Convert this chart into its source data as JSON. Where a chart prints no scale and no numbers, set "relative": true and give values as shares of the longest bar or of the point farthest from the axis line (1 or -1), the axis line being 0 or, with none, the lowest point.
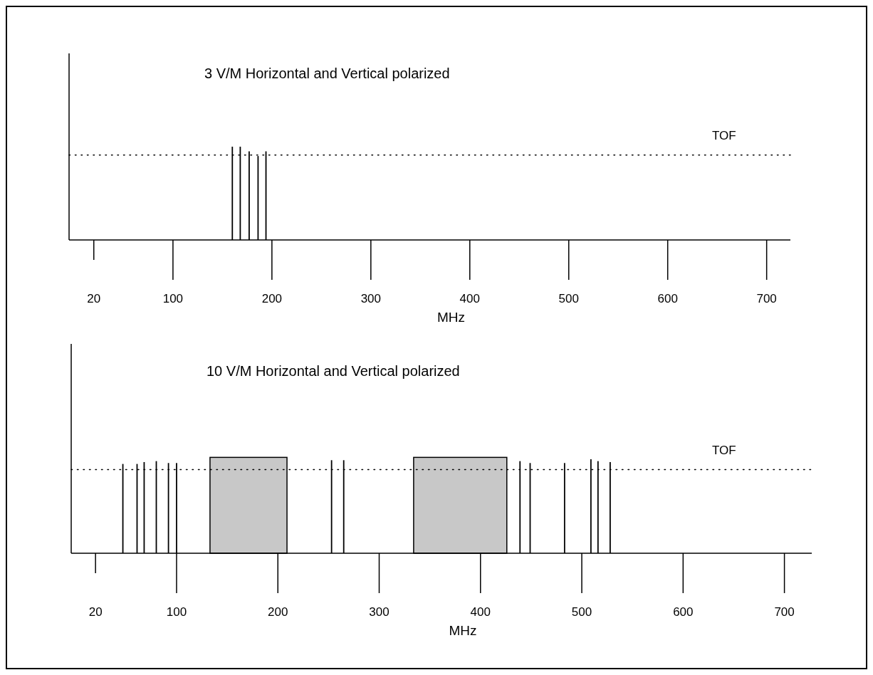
{
  "chart_data": [
    {
      "type": "bar",
      "title": "3 V/M  Horizontal and Vertical polarized",
      "xlabel": "MHz",
      "relative": true,
      "color": "#000000",
      "x": [
        160,
        168,
        177,
        186,
        194
      ],
      "values": [
        1,
        1,
        0.95,
        0.9,
        0.95
      ],
      "xlim": [
        -5,
        724
      ],
      "xticks": [
        20,
        100,
        200,
        300,
        400,
        500,
        600,
        700
      ],
      "ref_lines": [
        {
          "axis": "y",
          "value": 0.91,
          "label": "TOF",
          "line_style": "dotted"
        }
      ]
    },
    {
      "type": "bar",
      "title": "10 V/M Horizontal and Vertical polarized",
      "xlabel": "MHz",
      "relative": true,
      "color": "#000000",
      "x": [
        47,
        61,
        68,
        80,
        92,
        100,
        253,
        265,
        439,
        449,
        483,
        509,
        516,
        528
      ],
      "values": [
        0.95,
        0.95,
        0.97,
        0.98,
        0.96,
        0.96,
        0.99,
        0.99,
        0.98,
        0.96,
        0.96,
        1,
        0.98,
        0.97
      ],
      "xlim": [
        -4,
        727
      ],
      "xticks": [
        20,
        100,
        200,
        300,
        400,
        500,
        600,
        700
      ],
      "ref_lines": [
        {
          "axis": "y",
          "value": 0.89,
          "label": "TOF",
          "line_style": "dotted"
        }
      ],
      "bands": [
        {
          "axis": "x",
          "from": 133,
          "to": 209,
          "color": "#c8c8c8"
        },
        {
          "axis": "x",
          "from": 334,
          "to": 426,
          "color": "#c8c8c8"
        }
      ]
    }
  ]
}
